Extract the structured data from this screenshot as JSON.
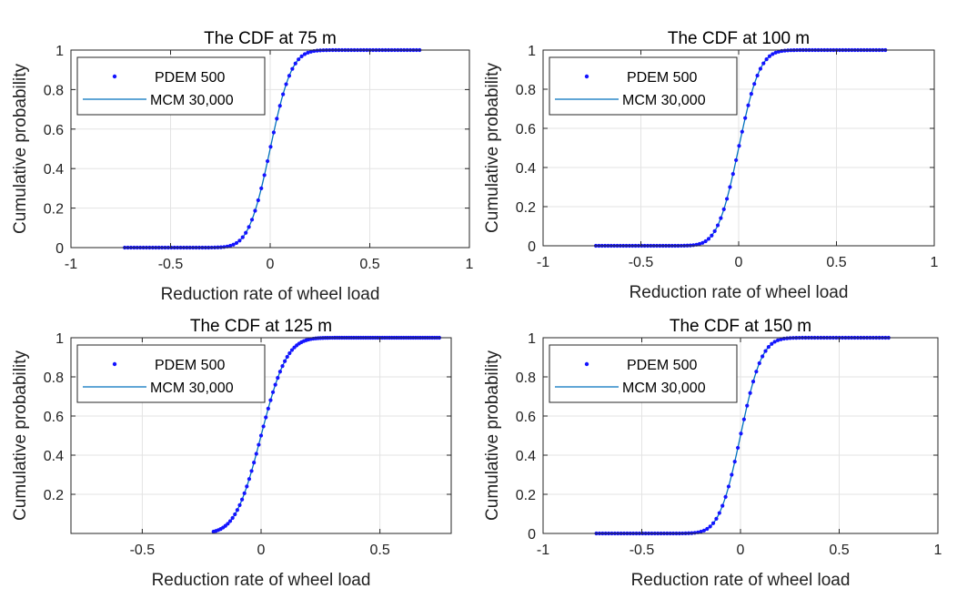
{
  "chart_data": [
    {
      "type": "line",
      "title": "The CDF  at 75 m",
      "xlabel": "Reduction rate of  wheel load",
      "ylabel": "Cumulative probability",
      "xlim": [
        -1,
        1
      ],
      "ylim": [
        0,
        1
      ],
      "xticks": [
        -1,
        -0.5,
        0,
        0.5,
        1
      ],
      "xtick_labels": [
        "-1",
        "-0.5",
        "0",
        "0.5",
        "1"
      ],
      "yticks": [
        0,
        0.2,
        0.4,
        0.6,
        0.8,
        1
      ],
      "ytick_labels": [
        "0",
        "0.2",
        "0.4",
        "0.6",
        "0.8",
        "1"
      ],
      "grid": true,
      "legend": {
        "position": "top-left",
        "entries": [
          "PDEM 500",
          "MCM 30,000"
        ]
      },
      "series": [
        {
          "name": "PDEM 500",
          "style": "markers",
          "x_range": [
            -0.73,
            0.75
          ],
          "mu": 0.0,
          "sigma": 0.085
        },
        {
          "name": "MCM 30,000",
          "style": "line",
          "x_range": [
            -0.73,
            0.75
          ],
          "mu": 0.0,
          "sigma": 0.085
        }
      ]
    },
    {
      "type": "line",
      "title": "The CDF  at 100 m",
      "xlabel": "Reduction rate of  wheel load",
      "ylabel": "Cumulative probability",
      "xlim": [
        -1,
        1
      ],
      "ylim": [
        0,
        1
      ],
      "xticks": [
        -1,
        -0.5,
        0,
        0.5,
        1
      ],
      "xtick_labels": [
        "-1",
        "-0.5",
        "0",
        "0.5",
        "1"
      ],
      "yticks": [
        0,
        0.2,
        0.4,
        0.6,
        0.8,
        1
      ],
      "ytick_labels": [
        "0",
        "0.2",
        "0.4",
        "0.6",
        "0.8",
        "1"
      ],
      "grid": true,
      "legend": {
        "position": "top-left",
        "entries": [
          "PDEM 500",
          "MCM 30,000"
        ]
      },
      "series": [
        {
          "name": "PDEM 500",
          "style": "markers",
          "x_range": [
            -0.73,
            0.75
          ],
          "mu": 0.0,
          "sigma": 0.085
        },
        {
          "name": "MCM 30,000",
          "style": "line",
          "x_range": [
            -0.73,
            0.75
          ],
          "mu": 0.0,
          "sigma": 0.085
        }
      ]
    },
    {
      "type": "line",
      "title": "The CDF  at 125 m",
      "xlabel": "Reduction rate of  wheel load",
      "ylabel": "Cumulative probability",
      "xlim": [
        -0.8,
        0.8
      ],
      "ylim": [
        0,
        1
      ],
      "xticks": [
        -0.5,
        0,
        0.5
      ],
      "xtick_labels": [
        "-0.5",
        "0",
        "0.5"
      ],
      "yticks": [
        0.2,
        0.4,
        0.6,
        0.8,
        1
      ],
      "ytick_labels": [
        "0.2",
        "0.4",
        "0.6",
        "0.8",
        "1"
      ],
      "grid": true,
      "legend": {
        "position": "top-left",
        "entries": [
          "PDEM 500",
          "MCM 30,000"
        ]
      },
      "series": [
        {
          "name": "PDEM 500",
          "style": "markers",
          "x_range": [
            -0.2,
            0.75
          ],
          "mu": 0.0,
          "sigma": 0.085
        },
        {
          "name": "MCM 30,000",
          "style": "line",
          "x_range": [
            -0.2,
            0.75
          ],
          "mu": 0.0,
          "sigma": 0.085
        }
      ]
    },
    {
      "type": "line",
      "title": "The CDF  at 150 m",
      "xlabel": "Reduction rate of  wheel load",
      "ylabel": "Cumulative probability",
      "xlim": [
        -1,
        1
      ],
      "ylim": [
        0,
        1
      ],
      "xticks": [
        -1,
        -0.5,
        0,
        0.5,
        1
      ],
      "xtick_labels": [
        "-1",
        "-0.5",
        "0",
        "0.5",
        "1"
      ],
      "yticks": [
        0,
        0.2,
        0.4,
        0.6,
        0.8,
        1
      ],
      "ytick_labels": [
        "0",
        "0.2",
        "0.4",
        "0.6",
        "0.8",
        "1"
      ],
      "grid": true,
      "legend": {
        "position": "top-left",
        "entries": [
          "PDEM 500",
          "MCM 30,000"
        ]
      },
      "series": [
        {
          "name": "PDEM 500",
          "style": "markers",
          "x_range": [
            -0.73,
            0.75
          ],
          "mu": 0.0,
          "sigma": 0.085
        },
        {
          "name": "MCM 30,000",
          "style": "line",
          "x_range": [
            -0.73,
            0.75
          ],
          "mu": 0.0,
          "sigma": 0.085
        }
      ]
    }
  ],
  "colors": {
    "markers": "#1414ff",
    "line": "#0072BD",
    "grid": "#e3e3e3",
    "axis": "#262626"
  }
}
